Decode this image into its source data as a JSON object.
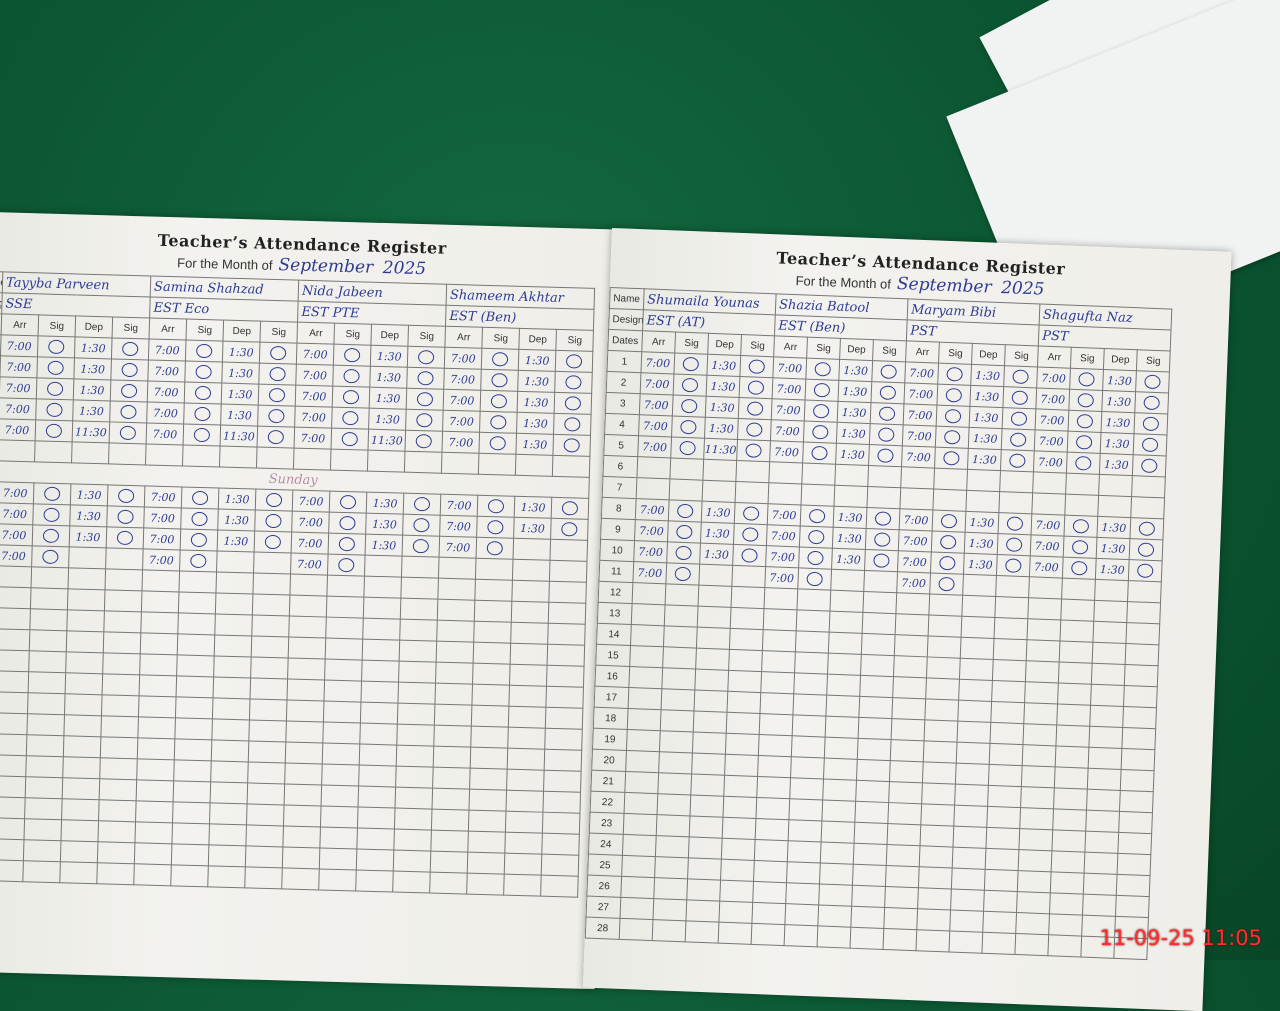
{
  "left_page": {
    "title": "Teacher’s Attendance Register",
    "month_label": "For the Month of",
    "month": "September",
    "year": "2025",
    "name_label": "me",
    "designation_label": "signation",
    "teachers": [
      {
        "name": "Tayyba Parveen",
        "designation": "SSE"
      },
      {
        "name": "Samina Shahzad",
        "designation": "EST Eco"
      },
      {
        "name": "Nida Jabeen",
        "designation": "EST PTE"
      },
      {
        "name": "Shameem Akhtar",
        "designation": "EST (Ben)"
      }
    ],
    "columns": [
      "Arr",
      "Sig",
      "Dep",
      "Sig"
    ],
    "rows": [
      [
        [
          "7:00",
          "1:30"
        ],
        [
          "7:00",
          "1:30"
        ],
        [
          "7:00",
          "1:30"
        ],
        [
          "7:00",
          "1:30"
        ]
      ],
      [
        [
          "7:00",
          "1:30"
        ],
        [
          "7:00",
          "1:30"
        ],
        [
          "7:00",
          "1:30"
        ],
        [
          "7:00",
          "1:30"
        ]
      ],
      [
        [
          "7:00",
          "1:30"
        ],
        [
          "7:00",
          "1:30"
        ],
        [
          "7:00",
          "1:30"
        ],
        [
          "7:00",
          "1:30"
        ]
      ],
      [
        [
          "7:00",
          "1:30"
        ],
        [
          "7:00",
          "1:30"
        ],
        [
          "7:00",
          "1:30"
        ],
        [
          "7:00",
          "1:30"
        ]
      ],
      [
        [
          "7:00",
          "11:30"
        ],
        [
          "7:00",
          "11:30"
        ],
        [
          "7:00",
          "11:30"
        ],
        [
          "7:00",
          "1:30"
        ]
      ],
      null,
      "Sunday",
      [
        [
          "7:00",
          "1:30"
        ],
        [
          "7:00",
          "1:30"
        ],
        [
          "7:00",
          "1:30"
        ],
        [
          "7:00",
          "1:30"
        ]
      ],
      [
        [
          "7:00",
          "1:30"
        ],
        [
          "7:00",
          "1:30"
        ],
        [
          "7:00",
          "1:30"
        ],
        [
          "7:00",
          "1:30"
        ]
      ],
      [
        [
          "7:00",
          "1:30"
        ],
        [
          "7:00",
          "1:30"
        ],
        [
          "7:00",
          "1:30"
        ],
        [
          "7:00",
          null
        ]
      ],
      [
        [
          "7:00",
          null
        ],
        [
          "7:00",
          null
        ],
        [
          "7:00",
          null
        ],
        null
      ]
    ]
  },
  "right_page": {
    "title": "Teacher’s Attendance Register",
    "month_label": "For the Month of",
    "month": "September",
    "year": "2025",
    "name_label": "Name",
    "designation_label": "Designation",
    "dates_label": "Dates",
    "teachers": [
      {
        "name": "Shumaila Younas",
        "designation": "EST (AT)"
      },
      {
        "name": "Shazia Batool",
        "designation": "EST (Ben)"
      },
      {
        "name": "Maryam Bibi",
        "designation": "PST"
      },
      {
        "name": "Shagufta Naz",
        "designation": "PST"
      }
    ],
    "columns": [
      "Arr",
      "Sig",
      "Dep",
      "Sig"
    ],
    "dates": [
      1,
      2,
      3,
      4,
      5,
      6,
      7,
      8,
      9,
      10,
      11,
      12,
      13,
      14,
      15,
      16,
      17,
      18,
      19,
      20,
      21,
      22,
      23,
      24,
      25,
      26,
      27,
      28
    ],
    "rows": [
      [
        [
          "7:00",
          "1:30"
        ],
        [
          "7:00",
          "1:30"
        ],
        [
          "7:00",
          "1:30"
        ],
        [
          "7:00",
          "1:30"
        ]
      ],
      [
        [
          "7:00",
          "1:30"
        ],
        [
          "7:00",
          "1:30"
        ],
        [
          "7:00",
          "1:30"
        ],
        [
          "7:00",
          "1:30"
        ]
      ],
      [
        [
          "7:00",
          "1:30"
        ],
        [
          "7:00",
          "1:30"
        ],
        [
          "7:00",
          "1:30"
        ],
        [
          "7:00",
          "1:30"
        ]
      ],
      [
        [
          "7:00",
          "1:30"
        ],
        [
          "7:00",
          "1:30"
        ],
        [
          "7:00",
          "1:30"
        ],
        [
          "7:00",
          "1:30"
        ]
      ],
      [
        [
          "7:00",
          "11:30"
        ],
        [
          "7:00",
          "1:30"
        ],
        [
          "7:00",
          "1:30"
        ],
        [
          "7:00",
          "1:30"
        ]
      ],
      null,
      null,
      [
        [
          "7:00",
          "1:30"
        ],
        [
          "7:00",
          "1:30"
        ],
        [
          "7:00",
          "1:30"
        ],
        [
          "7:00",
          "1:30"
        ]
      ],
      [
        [
          "7:00",
          "1:30"
        ],
        [
          "7:00",
          "1:30"
        ],
        [
          "7:00",
          "1:30"
        ],
        [
          "7:00",
          "1:30"
        ]
      ],
      [
        [
          "7:00",
          "1:30"
        ],
        [
          "7:00",
          "1:30"
        ],
        [
          "7:00",
          "1:30"
        ],
        [
          "7:00",
          "1:30"
        ]
      ],
      [
        [
          "7:00",
          null
        ],
        [
          "7:00",
          null
        ],
        [
          "7:00",
          null
        ],
        null
      ]
    ]
  },
  "timestamp": "11-09-25 11:05"
}
